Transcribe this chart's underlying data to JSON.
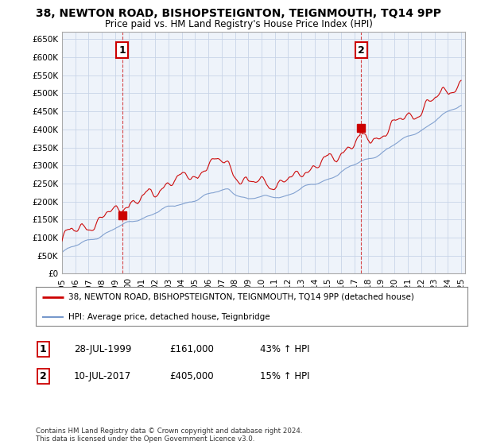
{
  "title": "38, NEWTON ROAD, BISHOPSTEIGNTON, TEIGNMOUTH, TQ14 9PP",
  "subtitle": "Price paid vs. HM Land Registry's House Price Index (HPI)",
  "legend_line1": "38, NEWTON ROAD, BISHOPSTEIGNTON, TEIGNMOUTH, TQ14 9PP (detached house)",
  "legend_line2": "HPI: Average price, detached house, Teignbridge",
  "annotation1_label": "1",
  "annotation1_date": "28-JUL-1999",
  "annotation1_price": "£161,000",
  "annotation1_hpi": "43% ↑ HPI",
  "annotation2_label": "2",
  "annotation2_date": "10-JUL-2017",
  "annotation2_price": "£405,000",
  "annotation2_hpi": "15% ↑ HPI",
  "footnote": "Contains HM Land Registry data © Crown copyright and database right 2024.\nThis data is licensed under the Open Government Licence v3.0.",
  "red_color": "#cc0000",
  "blue_color": "#7799cc",
  "chart_bg": "#eef3fa",
  "ylim": [
    0,
    670000
  ],
  "yticks": [
    0,
    50000,
    100000,
    150000,
    200000,
    250000,
    300000,
    350000,
    400000,
    450000,
    500000,
    550000,
    600000,
    650000
  ],
  "background_color": "#ffffff",
  "grid_color": "#c8d4e8"
}
